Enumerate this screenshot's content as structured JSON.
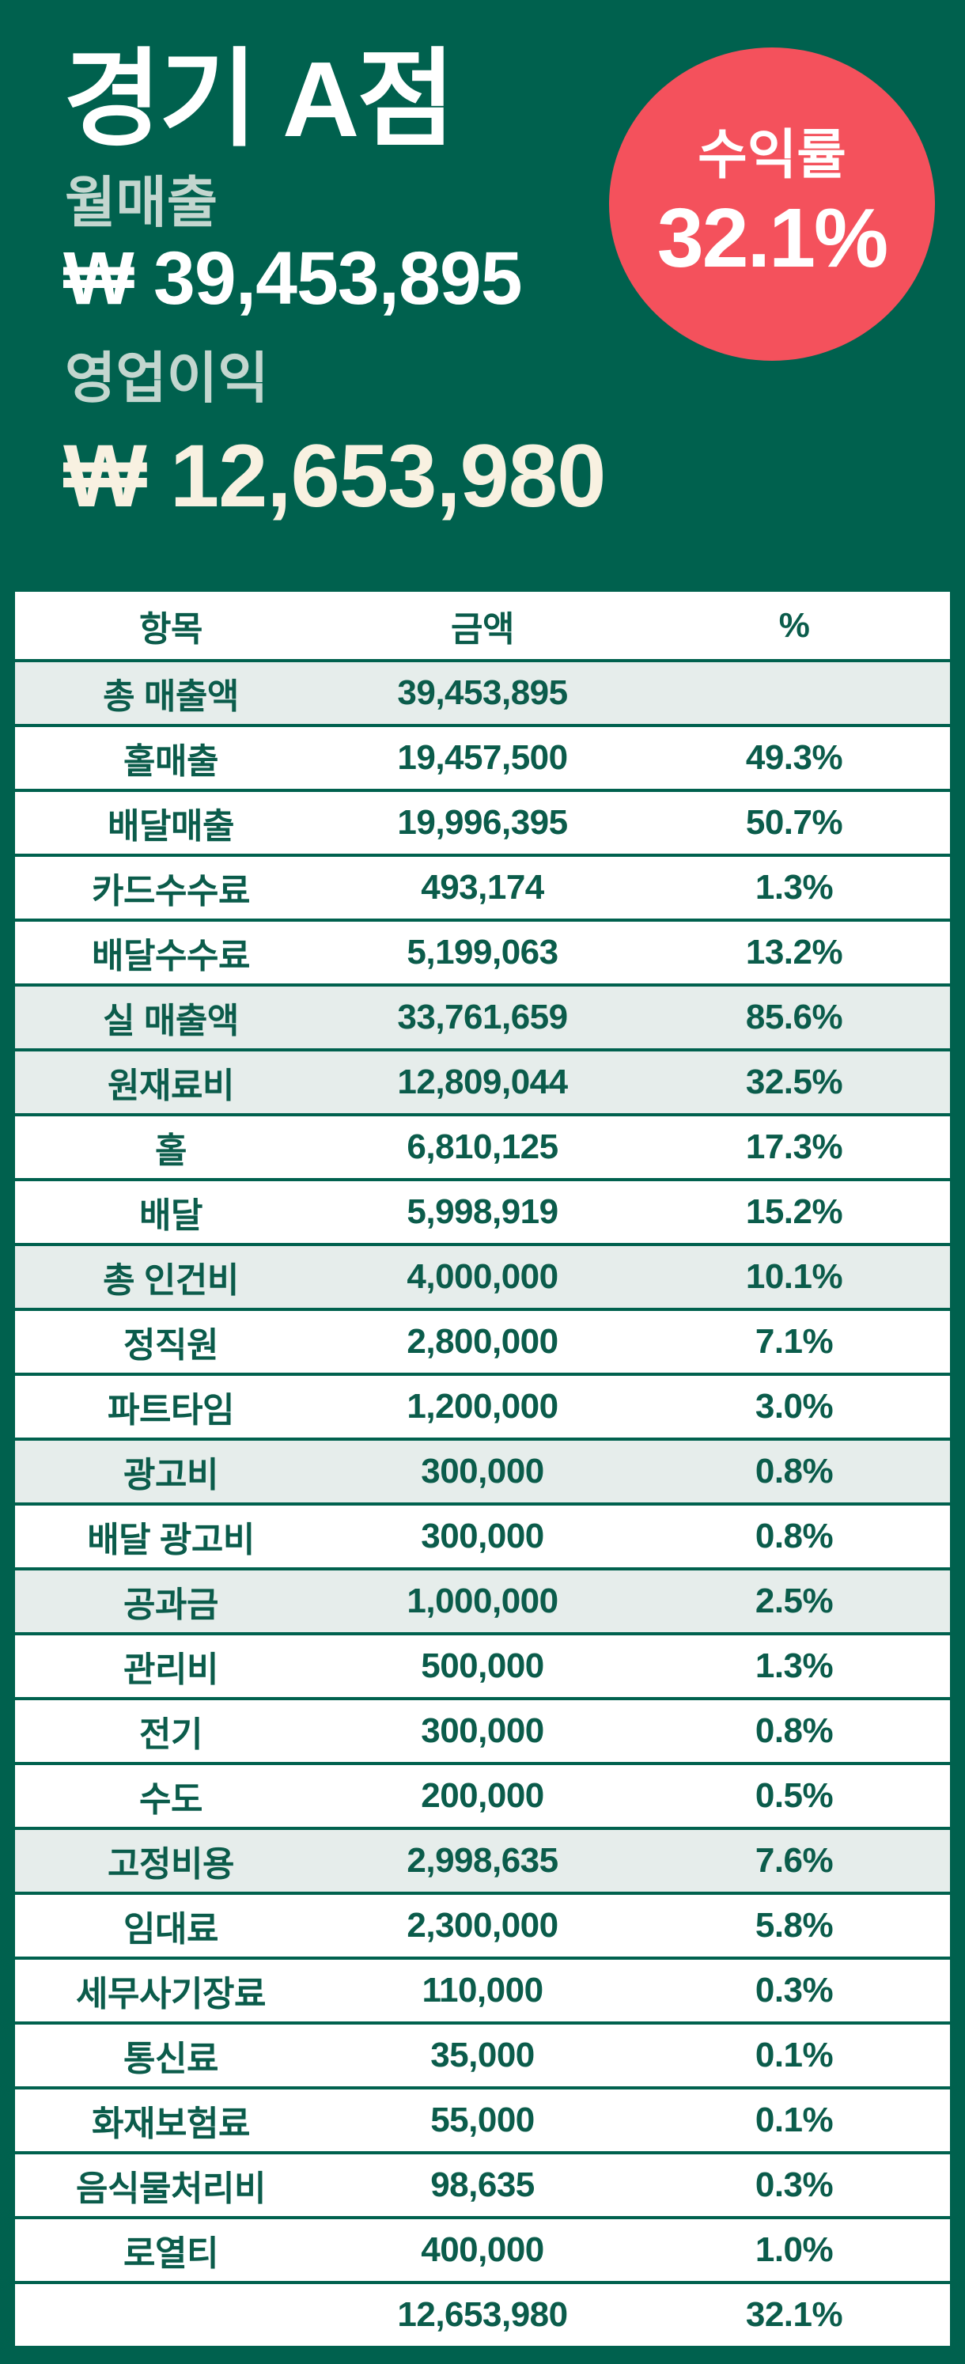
{
  "store": {
    "name": "경기 A점"
  },
  "kpis": {
    "monthly_sales_label": "월매출",
    "monthly_sales_value": "₩ 39,453,895",
    "operating_profit_label": "영업이익",
    "operating_profit_value": "₩ 12,653,980"
  },
  "profit_badge": {
    "label": "수익률",
    "value": "32.1%"
  },
  "colors": {
    "background_green": "#00614E",
    "badge_red": "#F4515C",
    "title_white": "#FFFFFF",
    "profit_cream": "#F8F1E1",
    "kpi_label_sage": "#C3D6CF",
    "row_highlight": "#E6EDEB",
    "table_text_green": "#0B5C4B"
  },
  "table": {
    "headers": [
      "항목",
      "금액",
      "%"
    ],
    "rows": [
      {
        "label": "총 매출액",
        "amount": "39,453,895",
        "percent": "",
        "highlight": true
      },
      {
        "label": "홀매출",
        "amount": "19,457,500",
        "percent": "49.3%",
        "highlight": false
      },
      {
        "label": "배달매출",
        "amount": "19,996,395",
        "percent": "50.7%",
        "highlight": false
      },
      {
        "label": "카드수수료",
        "amount": "493,174",
        "percent": "1.3%",
        "highlight": false
      },
      {
        "label": "배달수수료",
        "amount": "5,199,063",
        "percent": "13.2%",
        "highlight": false
      },
      {
        "label": "실 매출액",
        "amount": "33,761,659",
        "percent": "85.6%",
        "highlight": true
      },
      {
        "label": "원재료비",
        "amount": "12,809,044",
        "percent": "32.5%",
        "highlight": true
      },
      {
        "label": "홀",
        "amount": "6,810,125",
        "percent": "17.3%",
        "highlight": false
      },
      {
        "label": "배달",
        "amount": "5,998,919",
        "percent": "15.2%",
        "highlight": false
      },
      {
        "label": "총 인건비",
        "amount": "4,000,000",
        "percent": "10.1%",
        "highlight": true
      },
      {
        "label": "정직원",
        "amount": "2,800,000",
        "percent": "7.1%",
        "highlight": false
      },
      {
        "label": "파트타임",
        "amount": "1,200,000",
        "percent": "3.0%",
        "highlight": false
      },
      {
        "label": "광고비",
        "amount": "300,000",
        "percent": "0.8%",
        "highlight": true
      },
      {
        "label": "배달 광고비",
        "amount": "300,000",
        "percent": "0.8%",
        "highlight": false
      },
      {
        "label": "공과금",
        "amount": "1,000,000",
        "percent": "2.5%",
        "highlight": true
      },
      {
        "label": "관리비",
        "amount": "500,000",
        "percent": "1.3%",
        "highlight": false
      },
      {
        "label": "전기",
        "amount": "300,000",
        "percent": "0.8%",
        "highlight": false
      },
      {
        "label": "수도",
        "amount": "200,000",
        "percent": "0.5%",
        "highlight": false
      },
      {
        "label": "고정비용",
        "amount": "2,998,635",
        "percent": "7.6%",
        "highlight": true
      },
      {
        "label": "임대료",
        "amount": "2,300,000",
        "percent": "5.8%",
        "highlight": false
      },
      {
        "label": "세무사기장료",
        "amount": "110,000",
        "percent": "0.3%",
        "highlight": false
      },
      {
        "label": "통신료",
        "amount": "35,000",
        "percent": "0.1%",
        "highlight": false
      },
      {
        "label": "화재보험료",
        "amount": "55,000",
        "percent": "0.1%",
        "highlight": false
      },
      {
        "label": "음식물처리비",
        "amount": "98,635",
        "percent": "0.3%",
        "highlight": false
      },
      {
        "label": "로열티",
        "amount": "400,000",
        "percent": "1.0%",
        "highlight": false
      },
      {
        "label": "",
        "amount": "12,653,980",
        "percent": "32.1%",
        "highlight": false
      }
    ]
  }
}
